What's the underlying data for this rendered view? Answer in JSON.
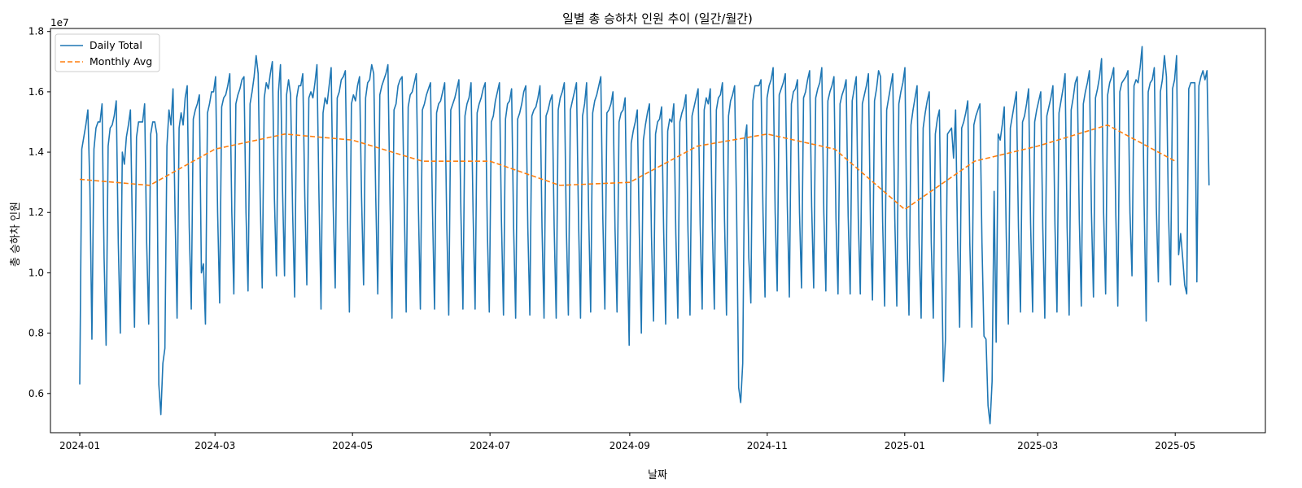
{
  "chart_data": {
    "type": "line",
    "title": "일별 총 승하차 인원 추이 (일간/월간)",
    "xlabel": "날짜",
    "ylabel": "총 승하차 인원",
    "y_offset_label": "1e7",
    "x_ticks": [
      "2024-01",
      "2024-03",
      "2024-05",
      "2024-07",
      "2024-09",
      "2024-11",
      "2025-01",
      "2025-03",
      "2025-05"
    ],
    "y_ticks": [
      "0.6",
      "0.8",
      "1.0",
      "1.2",
      "1.4",
      "1.6",
      "1.8"
    ],
    "xlim": [
      "2023-12-19",
      "2025-06-10"
    ],
    "ylim": [
      4.7,
      18.1
    ],
    "y_unit_scale": 10000000,
    "grid": false,
    "legend_position": "top-left",
    "series": [
      {
        "name": "Daily Total",
        "style": "solid",
        "color": "#1f77b4",
        "description": "daily totals estimated from the plot, values in units of 1e6 (×1e7 = /10)",
        "x_start": "2024-01-01",
        "x_end": "2025-05-16",
        "values": [
          6.3,
          14.1,
          14.5,
          14.9,
          15.4,
          12.8,
          7.8,
          14.1,
          14.8,
          15.0,
          15.0,
          15.6,
          10.5,
          7.6,
          14.2,
          14.8,
          14.9,
          15.2,
          15.7,
          11.0,
          8.0,
          14.0,
          13.6,
          14.5,
          14.9,
          15.4,
          11.3,
          8.2,
          14.5,
          15.0,
          15.0,
          15.0,
          15.6,
          11.0,
          8.3,
          14.6,
          15.0,
          15.0,
          14.6,
          6.3,
          5.3,
          7.0,
          7.5,
          14.2,
          15.4,
          14.9,
          16.1,
          12.0,
          8.5,
          14.8,
          15.3,
          14.9,
          15.8,
          16.2,
          11.5,
          8.8,
          15.1,
          15.4,
          15.6,
          15.9,
          10.0,
          10.3,
          8.3,
          15.3,
          15.6,
          16.0,
          16.0,
          16.5,
          12.0,
          9.0,
          15.5,
          15.8,
          15.9,
          16.2,
          16.6,
          12.0,
          9.3,
          15.6,
          15.9,
          16.1,
          16.4,
          16.5,
          12.0,
          9.4,
          15.6,
          16.0,
          16.5,
          17.2,
          16.6,
          12.5,
          9.5,
          15.8,
          16.3,
          16.1,
          16.6,
          17.0,
          12.5,
          9.9,
          16.0,
          16.9,
          12.8,
          9.9,
          15.9,
          16.4,
          15.9,
          12.0,
          9.2,
          15.8,
          16.2,
          16.2,
          16.6,
          12.5,
          9.6,
          15.8,
          16.0,
          15.8,
          16.3,
          16.9,
          12.5,
          8.8,
          15.3,
          15.8,
          15.6,
          16.2,
          16.8,
          12.2,
          9.5,
          15.8,
          16.0,
          16.4,
          16.5,
          16.7,
          12.2,
          8.7,
          15.6,
          15.9,
          15.7,
          16.2,
          16.5,
          12.5,
          9.6,
          15.8,
          16.3,
          16.4,
          16.9,
          16.6,
          12.5,
          9.3,
          15.9,
          16.2,
          16.4,
          16.6,
          16.9,
          12.5,
          8.5,
          15.4,
          15.6,
          16.2,
          16.4,
          16.5,
          12.5,
          8.7,
          15.5,
          15.9,
          16.0,
          16.3,
          16.6,
          12.3,
          8.8,
          15.4,
          15.6,
          15.9,
          16.1,
          16.3,
          12.0,
          8.8,
          15.3,
          15.6,
          15.7,
          16.0,
          16.3,
          11.7,
          8.6,
          15.4,
          15.6,
          15.8,
          16.1,
          16.4,
          12.0,
          8.8,
          15.2,
          15.6,
          15.8,
          16.3,
          12.0,
          8.8,
          15.3,
          15.6,
          15.8,
          16.1,
          16.3,
          11.5,
          8.7,
          15.0,
          15.2,
          15.7,
          16.0,
          16.3,
          11.7,
          8.6,
          15.1,
          15.6,
          15.7,
          16.1,
          11.5,
          8.5,
          15.1,
          15.3,
          15.6,
          16.0,
          16.2,
          11.5,
          8.6,
          15.2,
          15.4,
          15.5,
          15.8,
          16.2,
          11.5,
          8.5,
          15.2,
          15.4,
          15.7,
          15.9,
          11.5,
          8.5,
          15.4,
          15.8,
          16.0,
          16.3,
          11.5,
          8.6,
          15.4,
          15.7,
          16.0,
          16.3,
          11.8,
          8.5,
          15.2,
          15.6,
          16.3,
          12.0,
          8.7,
          15.3,
          15.7,
          15.9,
          16.2,
          16.5,
          11.8,
          8.8,
          15.3,
          15.4,
          15.6,
          16.0,
          11.5,
          8.7,
          15.0,
          15.3,
          15.4,
          15.8,
          11.0,
          7.6,
          14.3,
          14.7,
          15.0,
          15.4,
          11.3,
          8.0,
          14.4,
          14.9,
          15.3,
          15.6,
          11.2,
          8.4,
          14.6,
          15.0,
          15.1,
          15.5,
          11.4,
          8.3,
          14.7,
          15.1,
          15.0,
          15.6,
          11.3,
          8.5,
          15.0,
          15.3,
          15.5,
          15.9,
          11.4,
          8.6,
          15.2,
          15.5,
          15.8,
          16.1,
          11.6,
          8.8,
          15.4,
          15.8,
          15.6,
          16.1,
          11.5,
          8.8,
          15.4,
          15.8,
          15.9,
          16.3,
          11.8,
          8.6,
          15.2,
          15.7,
          15.9,
          16.2,
          12.0,
          6.2,
          5.7,
          7.0,
          14.4,
          14.9,
          10.5,
          9.0,
          15.7,
          16.2,
          16.2,
          16.2,
          16.4,
          12.0,
          9.2,
          15.8,
          16.2,
          16.4,
          16.8,
          12.0,
          9.4,
          15.9,
          16.1,
          16.3,
          16.6,
          12.2,
          9.2,
          15.6,
          16.0,
          16.1,
          16.4,
          12.0,
          9.5,
          15.8,
          16.0,
          16.4,
          16.7,
          12.2,
          9.5,
          15.8,
          16.1,
          16.3,
          16.8,
          12.0,
          9.4,
          15.7,
          16.0,
          16.2,
          16.5,
          11.8,
          9.3,
          15.6,
          15.9,
          16.1,
          16.4,
          11.9,
          9.3,
          15.7,
          16.1,
          16.5,
          11.8,
          9.3,
          15.6,
          15.9,
          16.2,
          16.6,
          11.6,
          9.1,
          15.7,
          16.1,
          16.7,
          16.5,
          11.7,
          8.9,
          15.4,
          15.8,
          16.2,
          16.6,
          11.8,
          8.9,
          15.6,
          16.0,
          16.3,
          16.8,
          11.2,
          8.6,
          14.9,
          15.4,
          15.8,
          16.2,
          11.0,
          8.5,
          14.8,
          15.3,
          15.7,
          16.0,
          11.0,
          8.5,
          14.6,
          15.1,
          15.4,
          10.8,
          6.4,
          7.8,
          14.6,
          14.7,
          14.8,
          13.8,
          15.4,
          11.0,
          8.2,
          14.8,
          15.0,
          15.3,
          15.7,
          11.0,
          8.2,
          14.9,
          15.2,
          15.4,
          15.6,
          11.0,
          7.9,
          7.8,
          5.6,
          5.0,
          6.4,
          12.7,
          7.7,
          14.6,
          14.4,
          14.9,
          15.5,
          11.2,
          8.3,
          14.8,
          15.2,
          15.6,
          16.0,
          11.5,
          8.7,
          15.0,
          15.2,
          15.6,
          16.1,
          11.6,
          8.7,
          15.0,
          15.4,
          15.7,
          16.0,
          11.5,
          8.5,
          15.2,
          15.5,
          15.8,
          16.2,
          11.6,
          8.7,
          15.3,
          15.7,
          16.1,
          16.6,
          11.5,
          8.6,
          15.4,
          15.8,
          16.3,
          16.5,
          11.8,
          8.9,
          15.6,
          16.0,
          16.3,
          16.7,
          12.0,
          9.2,
          15.8,
          16.1,
          16.5,
          17.1,
          12.0,
          9.3,
          15.9,
          16.3,
          16.5,
          16.8,
          12.0,
          8.9,
          16.0,
          16.3,
          16.4,
          16.5,
          16.7,
          12.0,
          9.9,
          16.2,
          16.4,
          16.3,
          16.8,
          17.5,
          12.2,
          8.4,
          16.0,
          16.3,
          16.4,
          16.8,
          12.2,
          9.7,
          16.0,
          16.4,
          17.2,
          16.5,
          12.0,
          9.6,
          16.1,
          16.4,
          17.2,
          10.6,
          11.3,
          10.5,
          9.6,
          9.3,
          16.1,
          16.3,
          16.3,
          16.3,
          9.7,
          16.2,
          16.5,
          16.7,
          16.4,
          16.7,
          12.9
        ]
      },
      {
        "name": "Monthly Avg",
        "style": "dashed",
        "color": "#ff7f0e",
        "x": [
          "2024-01-01",
          "2024-02-01",
          "2024-03-01",
          "2024-04-01",
          "2024-05-01",
          "2024-06-01",
          "2024-07-01",
          "2024-08-01",
          "2024-09-01",
          "2024-10-01",
          "2024-11-01",
          "2024-12-01",
          "2025-01-01",
          "2025-02-01",
          "2025-03-01",
          "2025-04-01",
          "2025-05-01"
        ],
        "values": [
          13.1,
          12.9,
          14.1,
          14.6,
          14.4,
          13.7,
          13.7,
          12.9,
          13.0,
          14.2,
          14.6,
          14.1,
          12.1,
          13.7,
          14.2,
          14.9,
          13.7
        ]
      }
    ]
  }
}
